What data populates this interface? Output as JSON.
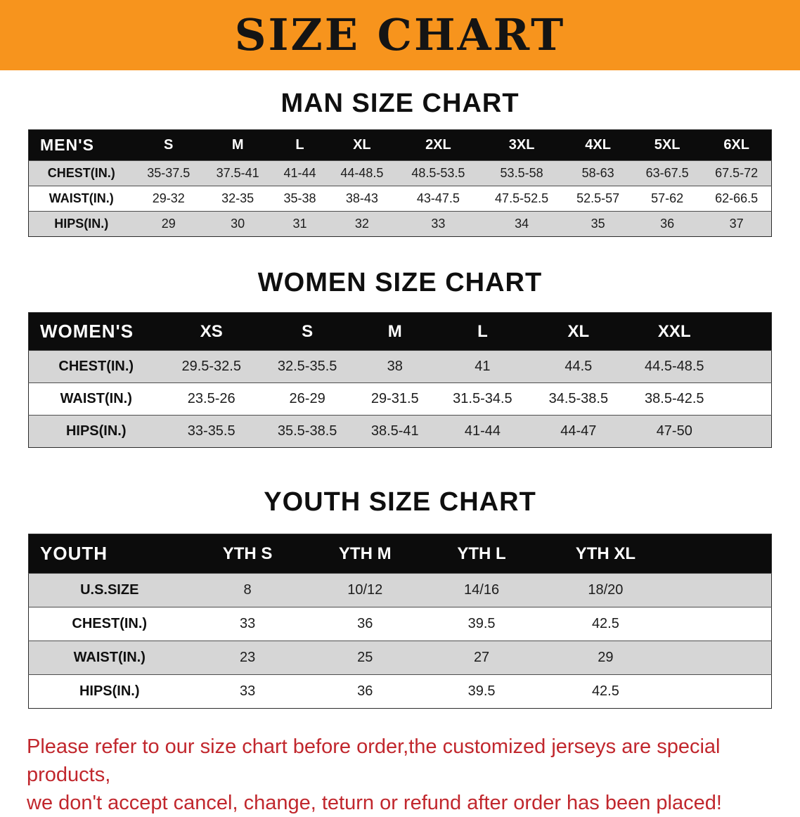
{
  "banner": {
    "title": "SIZE CHART"
  },
  "colors": {
    "accent": "#F7941D",
    "stripe": "#D6D6D6",
    "table_header_bg": "#0C0C0C",
    "table_header_text": "#FFFFFF",
    "disclaimer_red": "#C1272D"
  },
  "sections": [
    {
      "heading": "MAN SIZE CHART",
      "table": {
        "header": [
          "MEN'S",
          "S",
          "M",
          "L",
          "XL",
          "2XL",
          "3XL",
          "4XL",
          "5XL",
          "6XL"
        ],
        "rows": [
          {
            "label": "CHEST(IN.)",
            "values": [
              "35-37.5",
              "37.5-41",
              "41-44",
              "44-48.5",
              "48.5-53.5",
              "53.5-58",
              "58-63",
              "63-67.5",
              "67.5-72"
            ]
          },
          {
            "label": "WAIST(IN.)",
            "values": [
              "29-32",
              "32-35",
              "35-38",
              "38-43",
              "43-47.5",
              "47.5-52.5",
              "52.5-57",
              "57-62",
              "62-66.5"
            ]
          },
          {
            "label": "HIPS(IN.)",
            "values": [
              "29",
              "30",
              "31",
              "32",
              "33",
              "34",
              "35",
              "36",
              "37"
            ]
          }
        ]
      }
    },
    {
      "heading": "WOMEN SIZE CHART",
      "table": {
        "header": [
          "WOMEN'S",
          "XS",
          "S",
          "M",
          "L",
          "XL",
          "XXL"
        ],
        "rows": [
          {
            "label": "CHEST(IN.)",
            "values": [
              "29.5-32.5",
              "32.5-35.5",
              "38",
              "41",
              "44.5",
              "44.5-48.5"
            ]
          },
          {
            "label": "WAIST(IN.)",
            "values": [
              "23.5-26",
              "26-29",
              "29-31.5",
              "31.5-34.5",
              "34.5-38.5",
              "38.5-42.5"
            ]
          },
          {
            "label": "HIPS(IN.)",
            "values": [
              "33-35.5",
              "35.5-38.5",
              "38.5-41",
              "41-44",
              "44-47",
              "47-50"
            ]
          }
        ]
      }
    },
    {
      "heading": "YOUTH SIZE CHART",
      "table": {
        "header": [
          "YOUTH",
          "YTH S",
          "YTH M",
          "YTH L",
          "YTH XL"
        ],
        "rows": [
          {
            "label": "U.S.SIZE",
            "values": [
              "8",
              "10/12",
              "14/16",
              "18/20"
            ]
          },
          {
            "label": "CHEST(IN.)",
            "values": [
              "33",
              "36",
              "39.5",
              "42.5"
            ]
          },
          {
            "label": "WAIST(IN.)",
            "values": [
              "23",
              "25",
              "27",
              "29"
            ]
          },
          {
            "label": "HIPS(IN.)",
            "values": [
              "33",
              "36",
              "39.5",
              "42.5"
            ]
          }
        ]
      }
    }
  ],
  "disclaimer": {
    "lines": [
      "Please refer to our size chart before order,the customized jerseys are special products,",
      "we don't accept cancel, change, teturn or refund after order has been placed!"
    ]
  }
}
